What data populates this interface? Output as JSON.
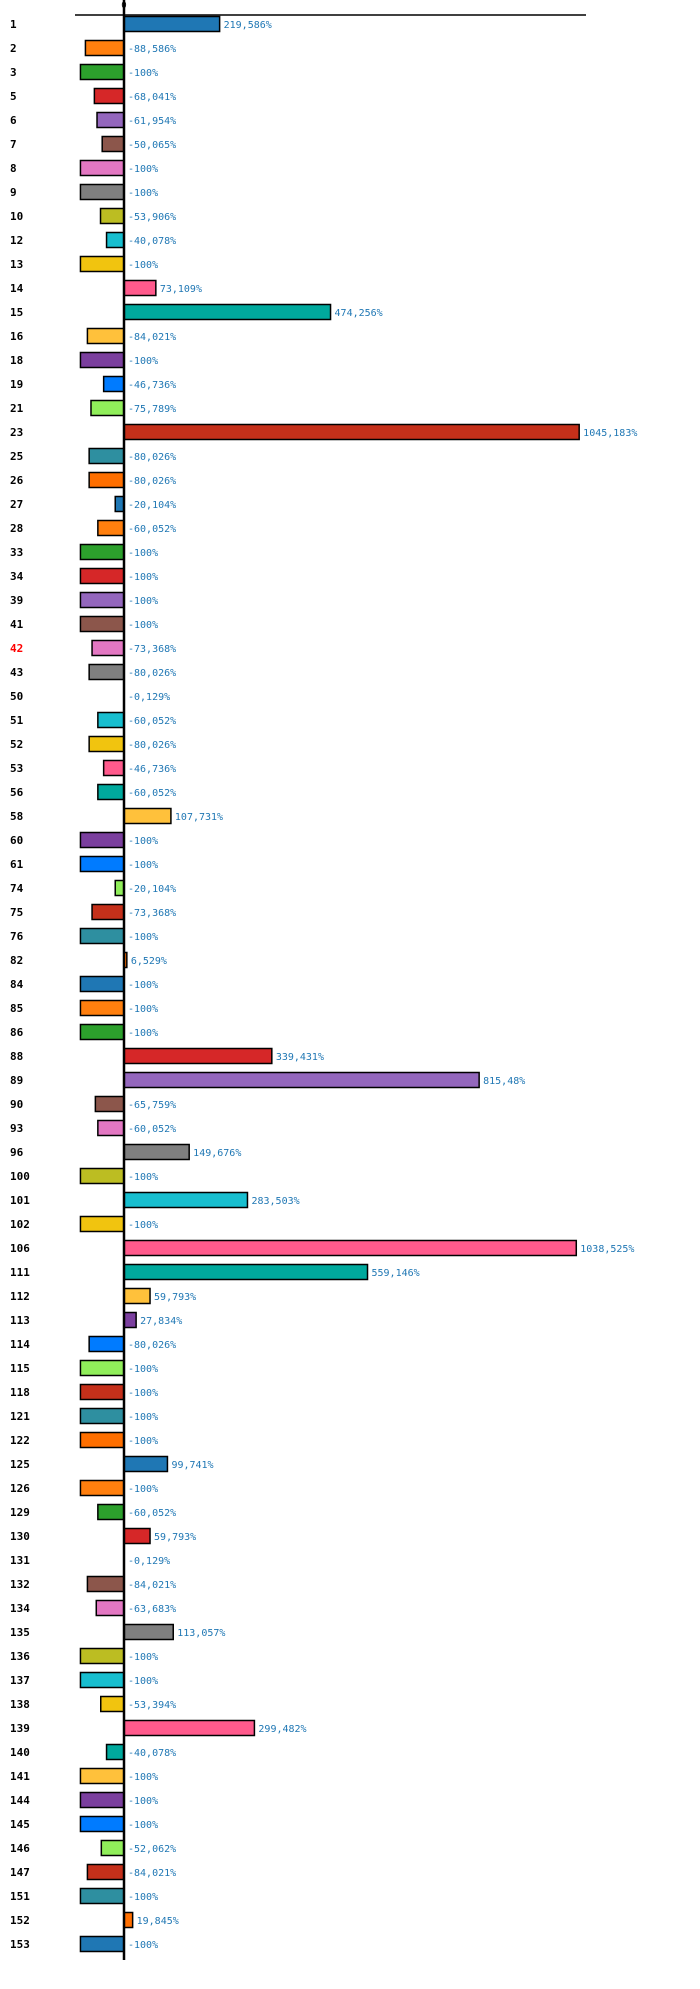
{
  "chart_data": {
    "type": "bar",
    "orientation": "horizontal",
    "title": "",
    "xlabel": "",
    "ylabel": "",
    "x_ticks": [
      "0"
    ],
    "xlim": [
      -112,
      1062
    ],
    "grid": false,
    "legend": "none",
    "value_suffix": "%",
    "decimal_separator": ",",
    "highlighted_categories": [
      "42"
    ],
    "highlight_color": "#ff0000",
    "value_label_color": "#1f77b4",
    "palette": [
      "#1f77b4",
      "#ff7f0e",
      "#2ca02c",
      "#d62728",
      "#9467bd",
      "#8c564b",
      "#e377c2",
      "#7f7f7f",
      "#bcbd22",
      "#17becf",
      "#f1c40f",
      "#ff5a8c",
      "#00a99d",
      "#ffc13b",
      "#7b3f9e",
      "#007bff",
      "#90ee5a",
      "#c5301a",
      "#2e8fa0",
      "#ff6f00"
    ],
    "categories": [
      "1",
      "2",
      "3",
      "5",
      "6",
      "7",
      "8",
      "9",
      "10",
      "12",
      "13",
      "14",
      "15",
      "16",
      "18",
      "19",
      "21",
      "23",
      "25",
      "26",
      "27",
      "28",
      "33",
      "34",
      "39",
      "41",
      "42",
      "43",
      "50",
      "51",
      "52",
      "53",
      "56",
      "58",
      "60",
      "61",
      "74",
      "75",
      "76",
      "82",
      "84",
      "85",
      "86",
      "88",
      "89",
      "90",
      "93",
      "96",
      "100",
      "101",
      "102",
      "106",
      "111",
      "112",
      "113",
      "114",
      "115",
      "118",
      "121",
      "122",
      "125",
      "126",
      "129",
      "130",
      "131",
      "132",
      "134",
      "135",
      "136",
      "137",
      "138",
      "139",
      "140",
      "141",
      "144",
      "145",
      "146",
      "147",
      "151",
      "152",
      "153"
    ],
    "values": [
      219.586,
      -88.586,
      -100,
      -68.041,
      -61.954,
      -50.065,
      -100,
      -100,
      -53.906,
      -40.078,
      -100,
      73.109,
      474.256,
      -84.021,
      -100,
      -46.736,
      -75.789,
      1045.183,
      -80.026,
      -80.026,
      -20.104,
      -60.052,
      -100,
      -100,
      -100,
      -100,
      -73.368,
      -80.026,
      -0.129,
      -60.052,
      -80.026,
      -46.736,
      -60.052,
      107.731,
      -100,
      -100,
      -20.104,
      -73.368,
      -100,
      6.529,
      -100,
      -100,
      -100,
      339.431,
      815.48,
      -65.759,
      -60.052,
      149.676,
      -100,
      283.503,
      -100,
      1038.525,
      559.146,
      59.793,
      27.834,
      -80.026,
      -100,
      -100,
      -100,
      -100,
      99.741,
      -100,
      -60.052,
      59.793,
      -0.129,
      -84.021,
      -63.683,
      113.057,
      -100,
      -100,
      -53.394,
      299.482,
      -40.078,
      -100,
      -100,
      -100,
      -52.062,
      -84.021,
      -100,
      19.845,
      -100
    ],
    "value_labels": [
      "219,586%",
      "-88,586%",
      "-100%",
      "-68,041%",
      "-61,954%",
      "-50,065%",
      "-100%",
      "-100%",
      "-53,906%",
      "-40,078%",
      "-100%",
      "73,109%",
      "474,256%",
      "-84,021%",
      "-100%",
      "-46,736%",
      "-75,789%",
      "1045,183%",
      "-80,026%",
      "-80,026%",
      "-20,104%",
      "-60,052%",
      "-100%",
      "-100%",
      "-100%",
      "-100%",
      "-73,368%",
      "-80,026%",
      "-0,129%",
      "-60,052%",
      "-80,026%",
      "-46,736%",
      "-60,052%",
      "107,731%",
      "-100%",
      "-100%",
      "-20,104%",
      "-73,368%",
      "-100%",
      "6,529%",
      "-100%",
      "-100%",
      "-100%",
      "339,431%",
      "815,48%",
      "-65,759%",
      "-60,052%",
      "149,676%",
      "-100%",
      "283,503%",
      "-100%",
      "1038,525%",
      "559,146%",
      "59,793%",
      "27,834%",
      "-80,026%",
      "-100%",
      "-100%",
      "-100%",
      "-100%",
      "99,741%",
      "-100%",
      "-60,052%",
      "59,793%",
      "-0,129%",
      "-84,021%",
      "-63,683%",
      "113,057%",
      "-100%",
      "-100%",
      "-53,394%",
      "299,482%",
      "-40,078%",
      "-100%",
      "-100%",
      "-100%",
      "-52,062%",
      "-84,021%",
      "-100%",
      "19,845%",
      "-100%"
    ]
  }
}
